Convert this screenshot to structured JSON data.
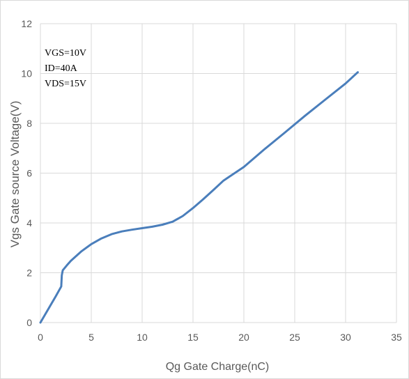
{
  "chart_data": {
    "type": "line",
    "title": "",
    "xlabel": "Qg Gate Charge(nC)",
    "ylabel": "Vgs Gate source Voltage(V)",
    "xlim": [
      0,
      35
    ],
    "ylim": [
      0,
      12
    ],
    "xticks": [
      0,
      5,
      10,
      15,
      20,
      25,
      30,
      35
    ],
    "yticks": [
      0,
      2,
      4,
      6,
      8,
      10,
      12
    ],
    "grid": true,
    "annotations": [
      "VGS=10V",
      "ID=40A",
      "VDS=15V"
    ],
    "series": [
      {
        "color": "#4a7ebb",
        "points": [
          [
            0,
            0
          ],
          [
            0.5,
            0.35
          ],
          [
            1.0,
            0.7
          ],
          [
            1.5,
            1.05
          ],
          [
            2.05,
            1.45
          ],
          [
            2.1,
            1.9
          ],
          [
            2.2,
            2.1
          ],
          [
            2.6,
            2.3
          ],
          [
            3.0,
            2.48
          ],
          [
            4.0,
            2.85
          ],
          [
            5.0,
            3.15
          ],
          [
            6.0,
            3.38
          ],
          [
            7.0,
            3.55
          ],
          [
            8.0,
            3.66
          ],
          [
            9.0,
            3.73
          ],
          [
            10.0,
            3.79
          ],
          [
            11.0,
            3.85
          ],
          [
            12.0,
            3.93
          ],
          [
            13.0,
            4.05
          ],
          [
            14.0,
            4.28
          ],
          [
            15.0,
            4.6
          ],
          [
            16.0,
            4.95
          ],
          [
            17.0,
            5.32
          ],
          [
            18.0,
            5.7
          ],
          [
            20.0,
            6.25
          ],
          [
            22.0,
            6.95
          ],
          [
            24.0,
            7.62
          ],
          [
            26.0,
            8.3
          ],
          [
            28.0,
            8.95
          ],
          [
            30.0,
            9.6
          ],
          [
            31.2,
            10.05
          ]
        ]
      }
    ]
  }
}
